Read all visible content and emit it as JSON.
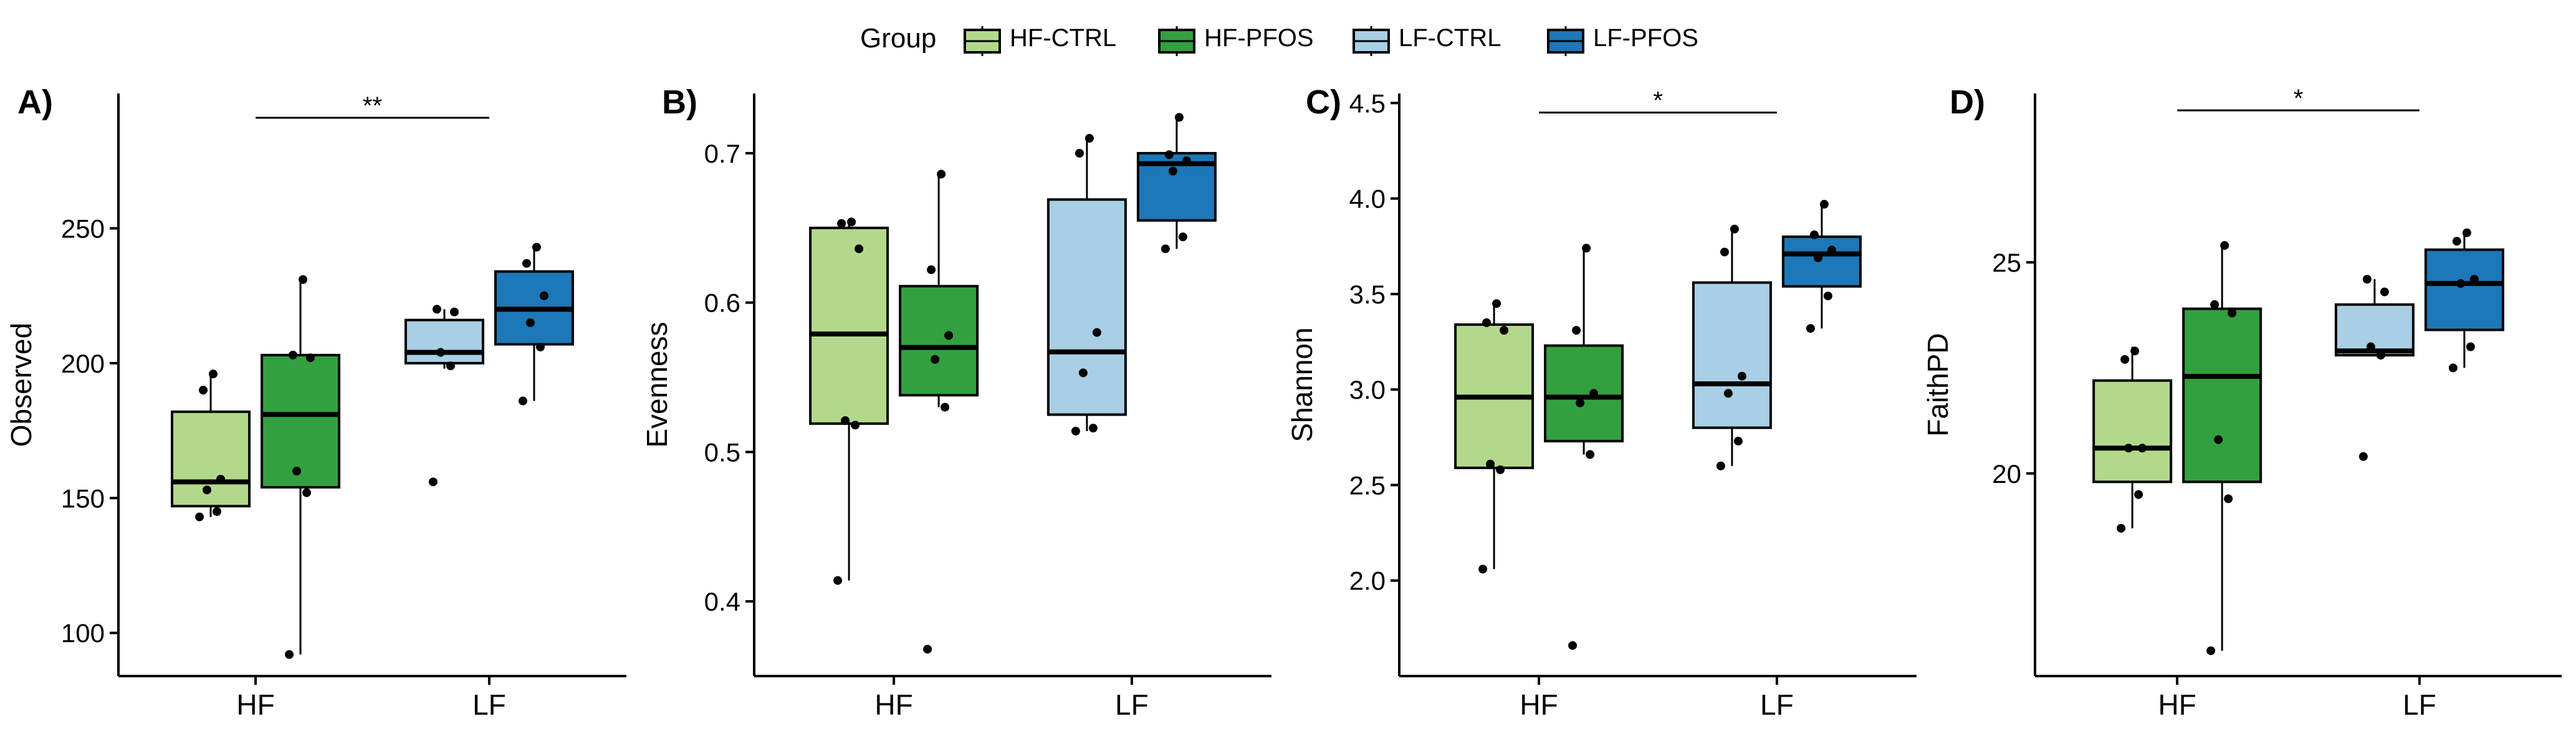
{
  "legend": {
    "title": "Group",
    "entries": [
      {
        "name": "HF-CTRL",
        "color": "#b2d98b"
      },
      {
        "name": "HF-PFOS",
        "color": "#33a040"
      },
      {
        "name": "LF-CTRL",
        "color": "#a8cfe5"
      },
      {
        "name": "LF-PFOS",
        "color": "#1c78b8"
      }
    ],
    "position": "top"
  },
  "chart_data": [
    {
      "type": "box",
      "panel_label": "A)",
      "ylabel": "Observed",
      "xlabel": "",
      "categories": [
        "HF",
        "LF"
      ],
      "ylim": [
        84,
        300
      ],
      "yticks": [
        100,
        150,
        200,
        250
      ],
      "grid": false,
      "significance": {
        "label": "**",
        "from": "HF",
        "to": "LF",
        "y": 291
      },
      "series": [
        {
          "name": "HF-CTRL",
          "category": "HF",
          "q1": 147,
          "median": 156,
          "q3": 182,
          "whisker_low": 143,
          "whisker_high": 197,
          "points": [
            143,
            145,
            153,
            157,
            190,
            196
          ]
        },
        {
          "name": "HF-PFOS",
          "category": "HF",
          "q1": 154,
          "median": 181,
          "q3": 203,
          "whisker_low": 92,
          "whisker_high": 231,
          "points": [
            92,
            152,
            160,
            202,
            203,
            231
          ]
        },
        {
          "name": "LF-CTRL",
          "category": "LF",
          "q1": 200,
          "median": 204,
          "q3": 216,
          "whisker_low": 198,
          "whisker_high": 220,
          "points": [
            156,
            199,
            204,
            219,
            220
          ]
        },
        {
          "name": "LF-PFOS",
          "category": "LF",
          "q1": 207,
          "median": 220,
          "q3": 234,
          "whisker_low": 186,
          "whisker_high": 243,
          "points": [
            186,
            206,
            215,
            225,
            237,
            243
          ]
        }
      ]
    },
    {
      "type": "box",
      "panel_label": "B)",
      "ylabel": "Evenness",
      "xlabel": "",
      "categories": [
        "HF",
        "LF"
      ],
      "ylim": [
        0.35,
        0.74
      ],
      "yticks": [
        0.4,
        0.5,
        0.6,
        0.7
      ],
      "yticklabels": [
        "0.4",
        "0.5",
        "0.6",
        "0.7"
      ],
      "grid": false,
      "series": [
        {
          "name": "HF-CTRL",
          "category": "HF",
          "q1": 0.519,
          "median": 0.579,
          "q3": 0.65,
          "whisker_low": 0.414,
          "whisker_high": 0.654,
          "points": [
            0.414,
            0.518,
            0.521,
            0.636,
            0.653,
            0.654
          ]
        },
        {
          "name": "HF-PFOS",
          "category": "HF",
          "q1": 0.538,
          "median": 0.57,
          "q3": 0.611,
          "whisker_low": 0.53,
          "whisker_high": 0.686,
          "points": [
            0.368,
            0.53,
            0.562,
            0.578,
            0.622,
            0.686
          ]
        },
        {
          "name": "LF-CTRL",
          "category": "LF",
          "q1": 0.525,
          "median": 0.567,
          "q3": 0.669,
          "whisker_low": 0.514,
          "whisker_high": 0.71,
          "points": [
            0.514,
            0.516,
            0.553,
            0.58,
            0.7,
            0.71
          ]
        },
        {
          "name": "LF-PFOS",
          "category": "LF",
          "q1": 0.655,
          "median": 0.693,
          "q3": 0.7,
          "whisker_low": 0.636,
          "whisker_high": 0.724,
          "points": [
            0.636,
            0.644,
            0.688,
            0.695,
            0.699,
            0.724
          ]
        }
      ]
    },
    {
      "type": "box",
      "panel_label": "C)",
      "ylabel": "Shannon",
      "xlabel": "",
      "categories": [
        "HF",
        "LF"
      ],
      "ylim": [
        1.5,
        4.55
      ],
      "yticks": [
        2.0,
        2.5,
        3.0,
        3.5,
        4.0,
        4.5
      ],
      "yticklabels": [
        "2.0",
        "2.5",
        "3.0",
        "3.5",
        "4.0",
        "4.5"
      ],
      "grid": false,
      "significance": {
        "label": "*",
        "from": "HF",
        "to": "LF",
        "y": 4.45
      },
      "series": [
        {
          "name": "HF-CTRL",
          "category": "HF",
          "q1": 2.59,
          "median": 2.96,
          "q3": 3.34,
          "whisker_low": 2.06,
          "whisker_high": 3.45,
          "points": [
            2.06,
            2.58,
            2.61,
            3.31,
            3.35,
            3.45
          ]
        },
        {
          "name": "HF-PFOS",
          "category": "HF",
          "q1": 2.73,
          "median": 2.96,
          "q3": 3.23,
          "whisker_low": 2.66,
          "whisker_high": 3.74,
          "points": [
            1.66,
            2.66,
            2.93,
            2.98,
            3.31,
            3.74
          ]
        },
        {
          "name": "LF-CTRL",
          "category": "LF",
          "q1": 2.8,
          "median": 3.03,
          "q3": 3.56,
          "whisker_low": 2.6,
          "whisker_high": 3.84,
          "points": [
            2.6,
            2.73,
            2.98,
            3.07,
            3.72,
            3.84
          ]
        },
        {
          "name": "LF-PFOS",
          "category": "LF",
          "q1": 3.54,
          "median": 3.71,
          "q3": 3.8,
          "whisker_low": 3.32,
          "whisker_high": 3.97,
          "points": [
            3.32,
            3.49,
            3.69,
            3.73,
            3.81,
            3.97
          ]
        }
      ]
    },
    {
      "type": "box",
      "panel_label": "D)",
      "ylabel": "FaithPD",
      "xlabel": "",
      "categories": [
        "HF",
        "LF"
      ],
      "ylim": [
        15.2,
        29.0
      ],
      "yticks": [
        20,
        25
      ],
      "grid": false,
      "significance": {
        "label": "*",
        "from": "HF",
        "to": "LF",
        "y": 28.6
      },
      "series": [
        {
          "name": "HF-CTRL",
          "category": "HF",
          "q1": 19.8,
          "median": 20.6,
          "q3": 22.2,
          "whisker_low": 18.7,
          "whisker_high": 23.0,
          "points": [
            18.7,
            19.5,
            20.6,
            20.6,
            22.7,
            22.9
          ]
        },
        {
          "name": "HF-PFOS",
          "category": "HF",
          "q1": 19.8,
          "median": 22.3,
          "q3": 23.9,
          "whisker_low": 15.8,
          "whisker_high": 25.4,
          "points": [
            15.8,
            19.4,
            20.8,
            23.8,
            24.0,
            25.4
          ]
        },
        {
          "name": "LF-CTRL",
          "category": "LF",
          "q1": 22.8,
          "median": 22.9,
          "q3": 24.0,
          "whisker_low": 22.8,
          "whisker_high": 24.6,
          "points": [
            20.4,
            22.8,
            23.0,
            24.3,
            24.6
          ]
        },
        {
          "name": "LF-PFOS",
          "category": "LF",
          "q1": 23.4,
          "median": 24.5,
          "q3": 25.3,
          "whisker_low": 22.5,
          "whisker_high": 25.7,
          "points": [
            22.5,
            23.0,
            24.5,
            24.6,
            25.5,
            25.7
          ]
        }
      ]
    }
  ]
}
